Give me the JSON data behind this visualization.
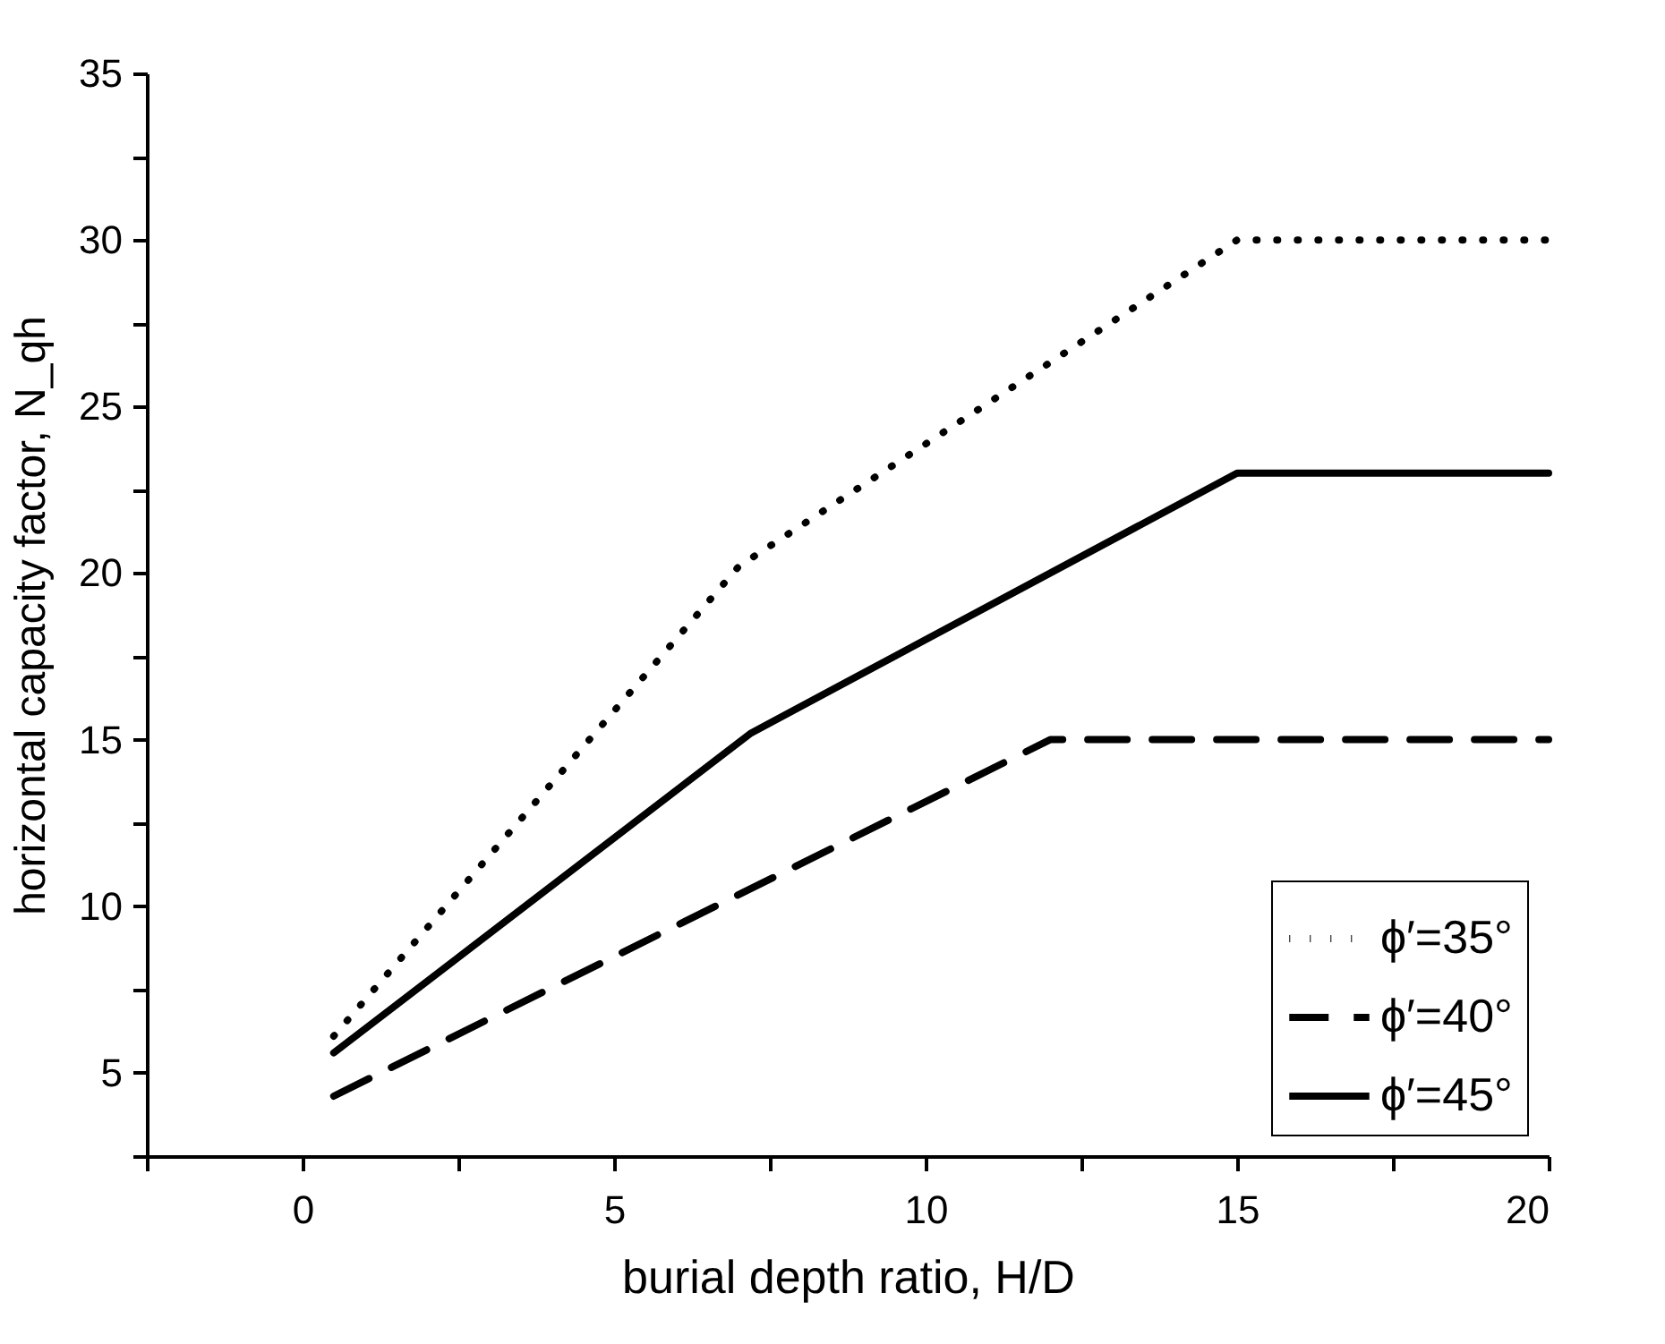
{
  "chart_data": {
    "type": "line",
    "xlabel": "burial depth ratio, H/D",
    "ylabel": "horizontal capacity factor, N_qh",
    "xlim": [
      -2.5,
      20
    ],
    "xticks": [
      {
        "value": -2.5,
        "label": null
      },
      0,
      {
        "value": 2.5,
        "label": null
      },
      5,
      {
        "value": 7.5,
        "label": null
      },
      10,
      {
        "value": 12.5,
        "label": null
      },
      15,
      {
        "value": 17.5,
        "label": null
      },
      20
    ],
    "ylim": [
      2.5,
      35
    ],
    "yticks": [
      {
        "value": 2.5,
        "label": null
      },
      5,
      {
        "value": 7.5,
        "label": null
      },
      10,
      {
        "value": 12.5,
        "label": null
      },
      15,
      {
        "value": 17.5,
        "label": null
      },
      20,
      {
        "value": 22.5,
        "label": null
      },
      25,
      {
        "value": 27.5,
        "label": null
      },
      30,
      {
        "value": 32.5,
        "label": null
      },
      35
    ],
    "grid": false,
    "legend": "bottom right",
    "marker": "none",
    "series": [
      {
        "name": "ϕ′=35°",
        "color": "#000000",
        "line_style": "dotted",
        "x": [
          0.5,
          7,
          15,
          20
        ],
        "values": [
          6.1,
          20.2,
          30,
          30
        ]
      },
      {
        "name": "ϕ′=40°",
        "color": "#000000",
        "line_style": "dashed",
        "x": [
          0.5,
          12,
          20
        ],
        "values": [
          4.3,
          15,
          15
        ]
      },
      {
        "name": "ϕ′=45°",
        "color": "#000000",
        "line_style": "solid",
        "x": [
          0.5,
          7.2,
          15,
          20
        ],
        "values": [
          5.6,
          15.2,
          23,
          23
        ]
      }
    ]
  }
}
